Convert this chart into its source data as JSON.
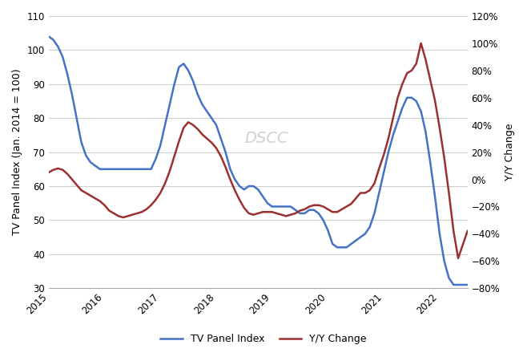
{
  "title": "",
  "xlabel": "",
  "ylabel_left": "TV Panel Index (Jan. 2014 = 100)",
  "ylabel_right": "Y/Y Change",
  "watermark": "DSCC",
  "ylim_left": [
    30,
    110
  ],
  "ylim_right": [
    -0.8,
    1.2
  ],
  "yticks_left": [
    30,
    40,
    50,
    60,
    70,
    80,
    90,
    100,
    110
  ],
  "yticks_right": [
    -0.8,
    -0.6,
    -0.4,
    -0.2,
    0.0,
    0.2,
    0.4,
    0.6,
    0.8,
    1.0,
    1.2
  ],
  "line_blue_color": "#4472C4",
  "line_red_color": "#9B3030",
  "legend_labels": [
    "TV Panel Index",
    "Y/Y Change"
  ],
  "tv_panel_index": {
    "x": [
      2015.0,
      2015.083,
      2015.167,
      2015.25,
      2015.333,
      2015.417,
      2015.5,
      2015.583,
      2015.667,
      2015.75,
      2015.833,
      2015.917,
      2016.0,
      2016.083,
      2016.167,
      2016.25,
      2016.333,
      2016.417,
      2016.5,
      2016.583,
      2016.667,
      2016.75,
      2016.833,
      2016.917,
      2017.0,
      2017.083,
      2017.167,
      2017.25,
      2017.333,
      2017.417,
      2017.5,
      2017.583,
      2017.667,
      2017.75,
      2017.833,
      2017.917,
      2018.0,
      2018.083,
      2018.167,
      2018.25,
      2018.333,
      2018.417,
      2018.5,
      2018.583,
      2018.667,
      2018.75,
      2018.833,
      2018.917,
      2019.0,
      2019.083,
      2019.167,
      2019.25,
      2019.333,
      2019.417,
      2019.5,
      2019.583,
      2019.667,
      2019.75,
      2019.833,
      2019.917,
      2020.0,
      2020.083,
      2020.167,
      2020.25,
      2020.333,
      2020.417,
      2020.5,
      2020.583,
      2020.667,
      2020.75,
      2020.833,
      2020.917,
      2021.0,
      2021.083,
      2021.167,
      2021.25,
      2021.333,
      2021.417,
      2021.5,
      2021.583,
      2021.667,
      2021.75,
      2021.833,
      2021.917,
      2022.0,
      2022.083,
      2022.167,
      2022.25,
      2022.333,
      2022.5
    ],
    "y": [
      104,
      103,
      101,
      98,
      93,
      87,
      80,
      73,
      69,
      67,
      66,
      65,
      65,
      65,
      65,
      65,
      65,
      65,
      65,
      65,
      65,
      65,
      65,
      68,
      72,
      78,
      84,
      90,
      95,
      96,
      94,
      91,
      87,
      84,
      82,
      80,
      78,
      74,
      70,
      65,
      62,
      60,
      59,
      60,
      60,
      59,
      57,
      55,
      54,
      54,
      54,
      54,
      54,
      53,
      52,
      52,
      53,
      53,
      52,
      50,
      47,
      43,
      42,
      42,
      42,
      43,
      44,
      45,
      46,
      48,
      52,
      58,
      64,
      70,
      75,
      79,
      83,
      86,
      86,
      85,
      82,
      76,
      67,
      57,
      46,
      38,
      33,
      31,
      31,
      31
    ]
  },
  "yy_change": {
    "x": [
      2015.0,
      2015.083,
      2015.167,
      2015.25,
      2015.333,
      2015.417,
      2015.5,
      2015.583,
      2015.667,
      2015.75,
      2015.833,
      2015.917,
      2016.0,
      2016.083,
      2016.167,
      2016.25,
      2016.333,
      2016.417,
      2016.5,
      2016.583,
      2016.667,
      2016.75,
      2016.833,
      2016.917,
      2017.0,
      2017.083,
      2017.167,
      2017.25,
      2017.333,
      2017.417,
      2017.5,
      2017.583,
      2017.667,
      2017.75,
      2017.833,
      2017.917,
      2018.0,
      2018.083,
      2018.167,
      2018.25,
      2018.333,
      2018.417,
      2018.5,
      2018.583,
      2018.667,
      2018.75,
      2018.833,
      2018.917,
      2019.0,
      2019.083,
      2019.167,
      2019.25,
      2019.333,
      2019.417,
      2019.5,
      2019.583,
      2019.667,
      2019.75,
      2019.833,
      2019.917,
      2020.0,
      2020.083,
      2020.167,
      2020.25,
      2020.333,
      2020.417,
      2020.5,
      2020.583,
      2020.667,
      2020.75,
      2020.833,
      2020.917,
      2021.0,
      2021.083,
      2021.167,
      2021.25,
      2021.333,
      2021.417,
      2021.5,
      2021.583,
      2021.667,
      2021.75,
      2021.833,
      2021.917,
      2022.0,
      2022.083,
      2022.167,
      2022.25,
      2022.333,
      2022.5
    ],
    "y": [
      0.05,
      0.07,
      0.08,
      0.07,
      0.04,
      0.0,
      -0.04,
      -0.08,
      -0.1,
      -0.12,
      -0.14,
      -0.16,
      -0.19,
      -0.23,
      -0.25,
      -0.27,
      -0.28,
      -0.27,
      -0.26,
      -0.25,
      -0.24,
      -0.22,
      -0.19,
      -0.15,
      -0.1,
      -0.03,
      0.06,
      0.17,
      0.28,
      0.38,
      0.42,
      0.4,
      0.37,
      0.33,
      0.3,
      0.27,
      0.23,
      0.17,
      0.09,
      0.0,
      -0.08,
      -0.15,
      -0.21,
      -0.25,
      -0.26,
      -0.25,
      -0.24,
      -0.24,
      -0.24,
      -0.25,
      -0.26,
      -0.27,
      -0.26,
      -0.25,
      -0.23,
      -0.22,
      -0.2,
      -0.19,
      -0.19,
      -0.2,
      -0.22,
      -0.24,
      -0.24,
      -0.22,
      -0.2,
      -0.18,
      -0.14,
      -0.1,
      -0.1,
      -0.08,
      -0.03,
      0.08,
      0.18,
      0.3,
      0.45,
      0.6,
      0.7,
      0.78,
      0.8,
      0.85,
      1.0,
      0.88,
      0.73,
      0.58,
      0.38,
      0.16,
      -0.1,
      -0.38,
      -0.58,
      -0.38
    ]
  }
}
